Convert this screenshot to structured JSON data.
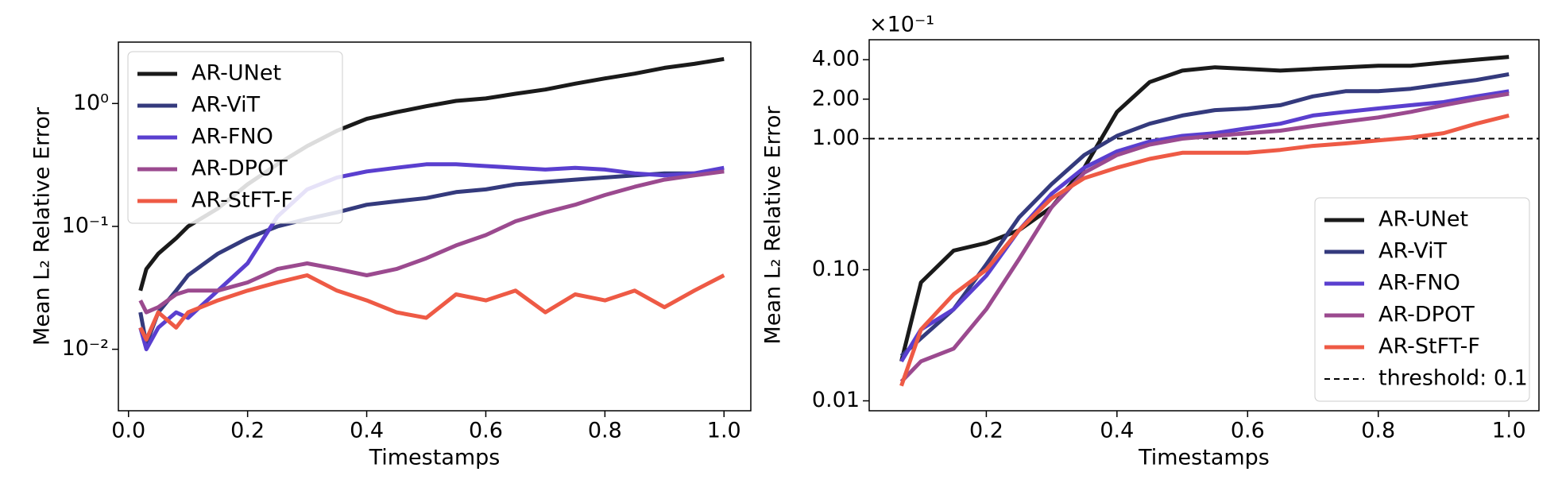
{
  "chart_data": [
    {
      "type": "line",
      "xlabel": "Timestamps",
      "ylabel": "Mean L₂ Relative Error",
      "ylog": true,
      "legend": "upper left",
      "x": [
        0.02,
        0.03,
        0.05,
        0.08,
        0.1,
        0.15,
        0.2,
        0.25,
        0.3,
        0.35,
        0.4,
        0.45,
        0.5,
        0.55,
        0.6,
        0.65,
        0.7,
        0.75,
        0.8,
        0.85,
        0.9,
        0.95,
        1.0
      ],
      "xlim": [
        -0.017,
        1.045
      ],
      "xticks": [
        {
          "value": 0,
          "label": "0.0"
        },
        0.2,
        0.4,
        0.6,
        0.8,
        {
          "value": 1,
          "label": "1.0"
        }
      ],
      "ylim": [
        0.00316,
        3.16
      ],
      "yticks": [
        {
          "value": 1,
          "label": "10⁰"
        },
        {
          "value": 0.1,
          "label": "10⁻¹"
        },
        {
          "value": 0.01,
          "label": "10⁻²"
        }
      ],
      "series": [
        {
          "name": "AR-UNet",
          "color": "#1a1a1a",
          "values": [
            0.03,
            0.045,
            0.06,
            0.08,
            0.1,
            0.14,
            0.22,
            0.32,
            0.45,
            0.6,
            0.75,
            0.85,
            0.95,
            1.05,
            1.1,
            1.2,
            1.3,
            1.45,
            1.6,
            1.75,
            1.95,
            2.1,
            2.3
          ]
        },
        {
          "name": "AR-ViT",
          "color": "#343a7d",
          "values": [
            0.02,
            0.011,
            0.02,
            0.03,
            0.04,
            0.06,
            0.08,
            0.1,
            0.115,
            0.13,
            0.15,
            0.16,
            0.17,
            0.19,
            0.2,
            0.22,
            0.23,
            0.24,
            0.25,
            0.26,
            0.27,
            0.27,
            0.28
          ]
        },
        {
          "name": "AR-FNO",
          "color": "#5a3fcf",
          "values": [
            0.015,
            0.01,
            0.015,
            0.02,
            0.018,
            0.03,
            0.05,
            0.12,
            0.2,
            0.25,
            0.28,
            0.3,
            0.32,
            0.32,
            0.31,
            0.3,
            0.29,
            0.3,
            0.29,
            0.27,
            0.26,
            0.27,
            0.3
          ]
        },
        {
          "name": "AR-DPOT",
          "color": "#9b4a8f",
          "values": [
            0.025,
            0.02,
            0.022,
            0.028,
            0.03,
            0.03,
            0.035,
            0.045,
            0.05,
            0.045,
            0.04,
            0.045,
            0.055,
            0.07,
            0.085,
            0.11,
            0.13,
            0.15,
            0.18,
            0.21,
            0.24,
            0.26,
            0.28
          ]
        },
        {
          "name": "AR-StFT-F",
          "color": "#ee5a45",
          "values": [
            0.015,
            0.012,
            0.02,
            0.015,
            0.02,
            0.025,
            0.03,
            0.035,
            0.04,
            0.03,
            0.025,
            0.02,
            0.018,
            0.028,
            0.025,
            0.03,
            0.02,
            0.028,
            0.025,
            0.03,
            0.022,
            0.03,
            0.04
          ]
        }
      ]
    },
    {
      "type": "line",
      "xlabel": "Timestamps",
      "ylabel": "Mean L₂ Relative Error",
      "ylog": true,
      "legend": "lower right",
      "offset_text": "×10⁻¹",
      "x": [
        0.07,
        0.1,
        0.15,
        0.2,
        0.25,
        0.3,
        0.35,
        0.4,
        0.45,
        0.5,
        0.55,
        0.6,
        0.65,
        0.7,
        0.75,
        0.8,
        0.85,
        0.9,
        0.95,
        1.0
      ],
      "xlim": [
        0.0207,
        1.046
      ],
      "xticks": [
        0.2,
        0.4,
        0.6,
        0.8,
        {
          "value": 1,
          "label": "1.0"
        }
      ],
      "ylim": [
        0.00084,
        0.568
      ],
      "yticks": [
        {
          "value": 0.001,
          "label": "0.01"
        },
        {
          "value": 0.01,
          "label": "0.10"
        },
        {
          "value": 0.1,
          "label": "1.00"
        },
        {
          "value": 0.2,
          "label": "2.00"
        },
        {
          "value": 0.4,
          "label": "4.00"
        }
      ],
      "threshold": {
        "value": 0.1,
        "label": "threshold: 0.1"
      },
      "series": [
        {
          "name": "AR-UNet",
          "color": "#1a1a1a",
          "values": [
            0.002,
            0.008,
            0.014,
            0.016,
            0.02,
            0.03,
            0.06,
            0.16,
            0.27,
            0.33,
            0.35,
            0.34,
            0.33,
            0.34,
            0.35,
            0.36,
            0.36,
            0.38,
            0.4,
            0.42
          ]
        },
        {
          "name": "AR-ViT",
          "color": "#343a7d",
          "values": [
            0.0022,
            0.003,
            0.005,
            0.011,
            0.025,
            0.045,
            0.075,
            0.105,
            0.13,
            0.15,
            0.165,
            0.17,
            0.18,
            0.21,
            0.23,
            0.23,
            0.24,
            0.26,
            0.28,
            0.31
          ]
        },
        {
          "name": "AR-FNO",
          "color": "#5a3fcf",
          "values": [
            0.002,
            0.0035,
            0.005,
            0.009,
            0.02,
            0.038,
            0.06,
            0.08,
            0.095,
            0.105,
            0.11,
            0.12,
            0.13,
            0.15,
            0.16,
            0.17,
            0.18,
            0.19,
            0.21,
            0.23
          ]
        },
        {
          "name": "AR-DPOT",
          "color": "#9b4a8f",
          "values": [
            0.0014,
            0.002,
            0.0025,
            0.005,
            0.012,
            0.03,
            0.055,
            0.075,
            0.09,
            0.1,
            0.105,
            0.11,
            0.115,
            0.125,
            0.135,
            0.145,
            0.16,
            0.18,
            0.2,
            0.22
          ]
        },
        {
          "name": "AR-StFT-F",
          "color": "#ee5a45",
          "values": [
            0.0013,
            0.0035,
            0.0065,
            0.01,
            0.02,
            0.035,
            0.05,
            0.06,
            0.07,
            0.078,
            0.078,
            0.078,
            0.082,
            0.088,
            0.092,
            0.097,
            0.102,
            0.11,
            0.13,
            0.15
          ]
        }
      ]
    }
  ]
}
